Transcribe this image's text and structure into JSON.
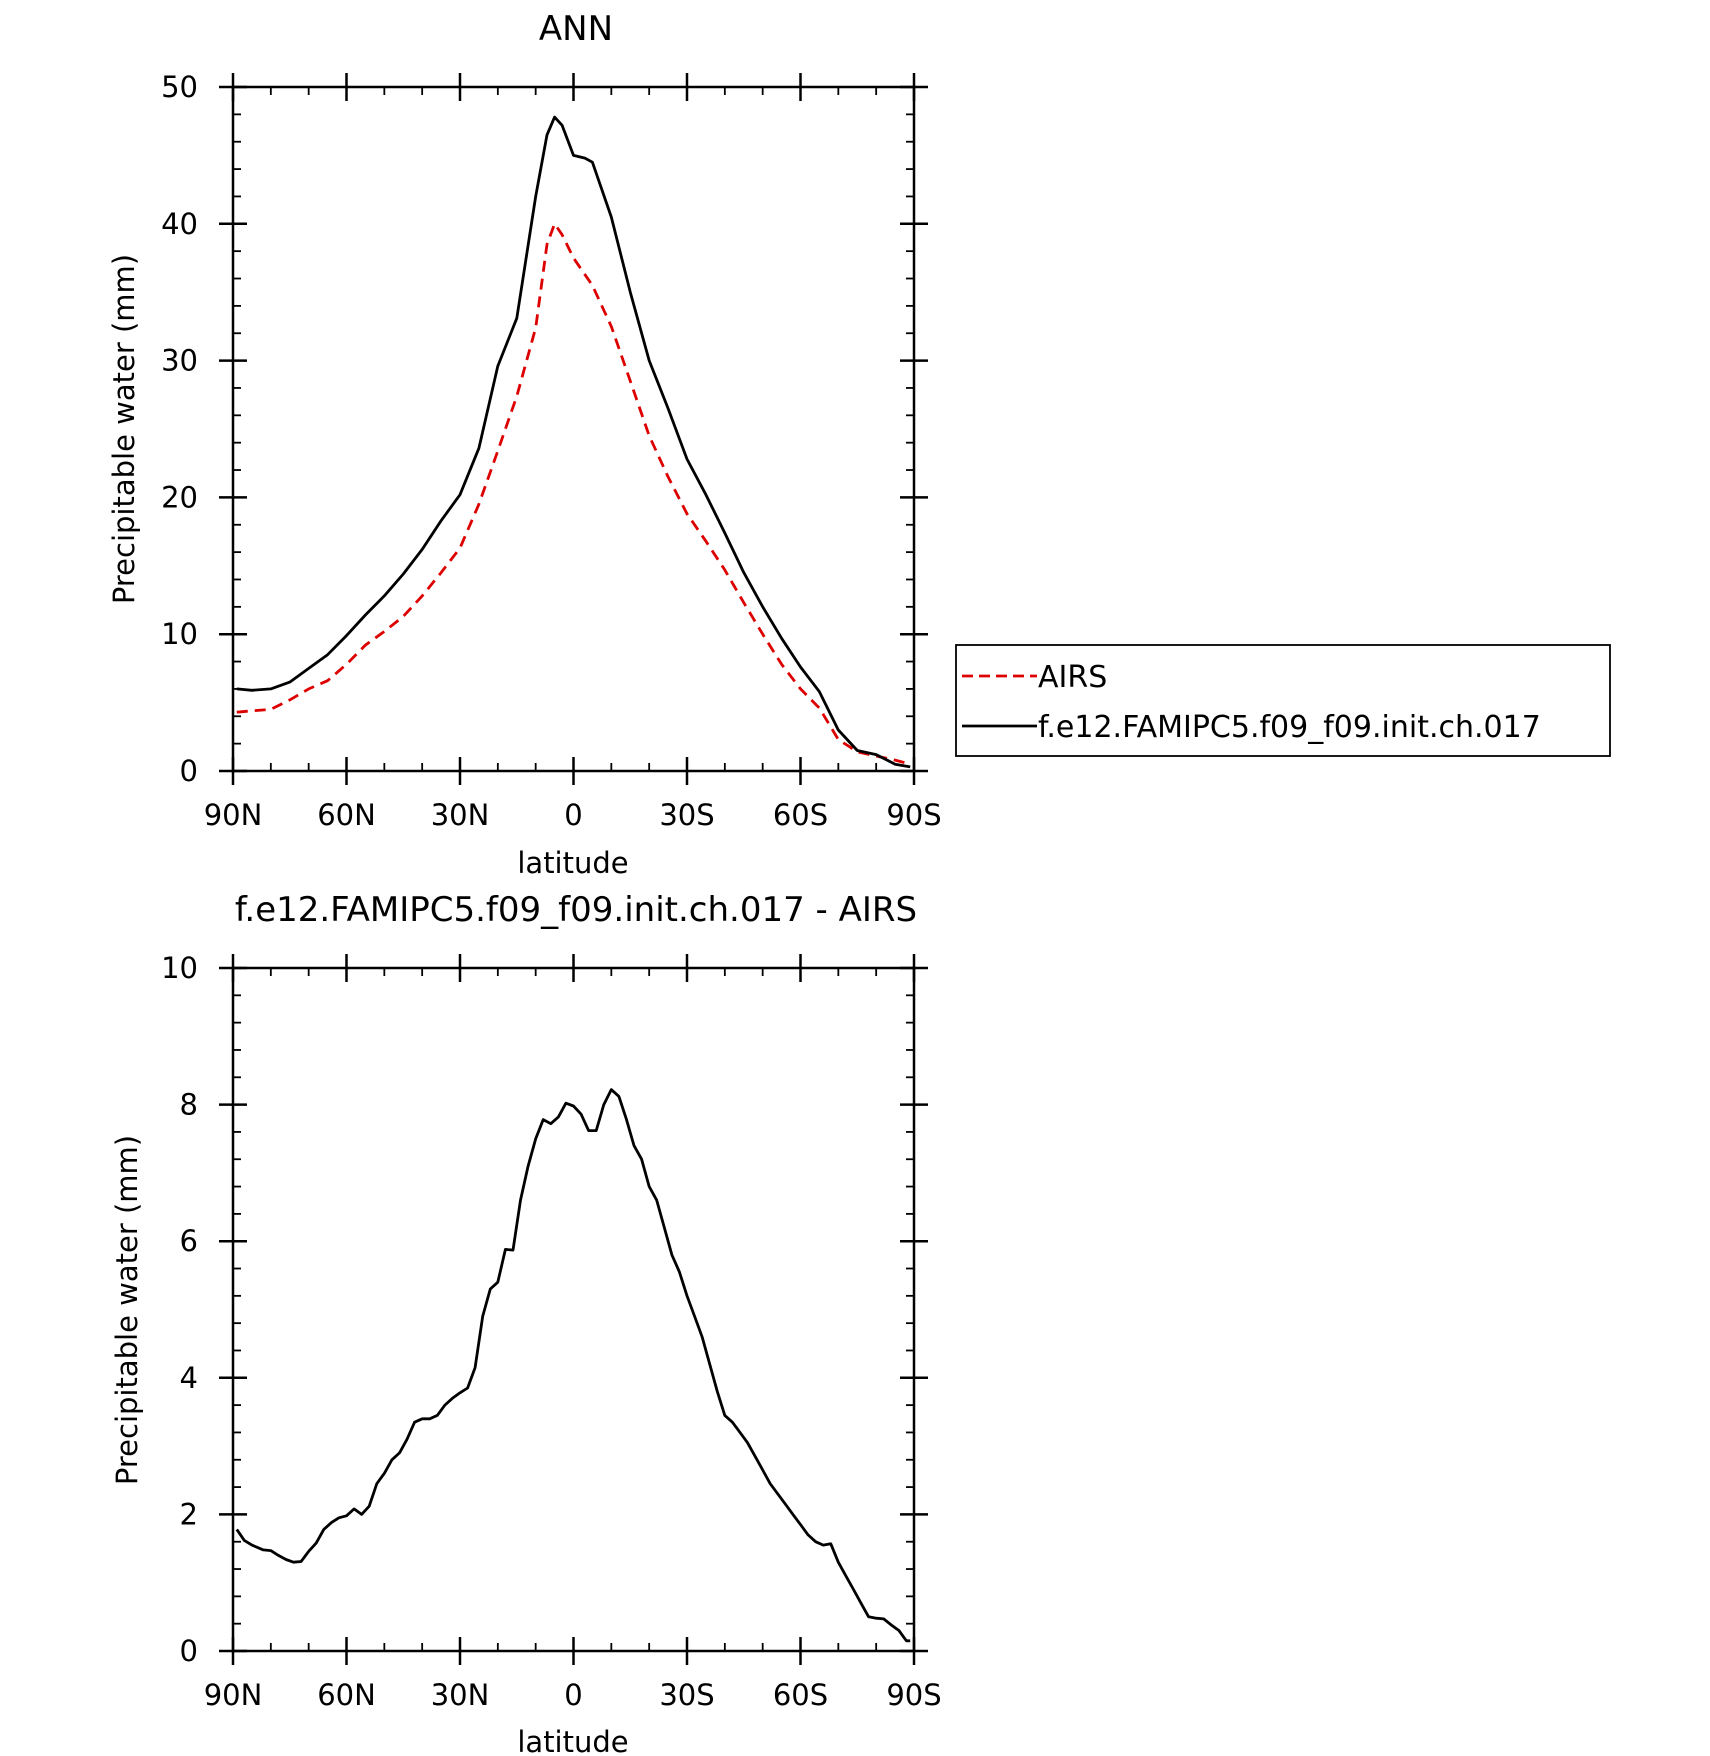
{
  "chart_data": [
    {
      "type": "line",
      "title": "ANN",
      "xlabel": "latitude",
      "ylabel": "Precipitable water (mm)",
      "xlim": [
        90,
        -90
      ],
      "ylim": [
        0,
        50
      ],
      "x_ticks": [
        90,
        60,
        30,
        0,
        -30,
        -60,
        -90
      ],
      "x_tick_labels": [
        "90N",
        "60N",
        "30N",
        "0",
        "30S",
        "60S",
        "90S"
      ],
      "y_ticks": [
        0,
        10,
        20,
        30,
        40,
        50
      ],
      "y_tick_labels": [
        "0",
        "10",
        "20",
        "30",
        "40",
        "50"
      ],
      "legend_position": "right",
      "series": [
        {
          "name": "AIRS",
          "color": "#dd0000",
          "style": "dashed",
          "x": [
            89,
            85,
            80,
            75,
            70,
            65,
            60,
            55,
            50,
            45,
            40,
            35,
            30,
            25,
            20,
            15,
            10,
            7,
            5,
            3,
            0,
            -5,
            -10,
            -15,
            -20,
            -25,
            -30,
            -35,
            -40,
            -45,
            -50,
            -55,
            -60,
            -65,
            -70,
            -75,
            -80,
            -85,
            -89
          ],
          "y": [
            4.3,
            4.4,
            4.5,
            5.2,
            6.0,
            6.6,
            7.8,
            9.2,
            10.2,
            11.3,
            12.8,
            14.5,
            16.3,
            19.5,
            23.4,
            27.4,
            32.4,
            38.5,
            40.0,
            39.2,
            37.5,
            35.5,
            32.5,
            28.5,
            24.5,
            21.5,
            18.8,
            16.8,
            14.7,
            12.3,
            10.0,
            7.8,
            6.0,
            4.6,
            2.3,
            1.4,
            1.1,
            0.8,
            0.5
          ]
        },
        {
          "name": "f.e12.FAMIPC5.f09_f09.init.ch.017",
          "color": "#000000",
          "style": "solid",
          "x": [
            89,
            85,
            80,
            75,
            70,
            65,
            60,
            55,
            50,
            45,
            40,
            35,
            30,
            25,
            20,
            15,
            10,
            7,
            5,
            3,
            0,
            -3,
            -5,
            -10,
            -15,
            -20,
            -25,
            -30,
            -35,
            -40,
            -45,
            -50,
            -55,
            -60,
            -65,
            -70,
            -75,
            -80,
            -85,
            -89
          ],
          "y": [
            6.0,
            5.9,
            6.0,
            6.5,
            7.5,
            8.5,
            9.9,
            11.4,
            12.8,
            14.4,
            16.2,
            18.3,
            20.2,
            23.6,
            29.6,
            33.1,
            42.0,
            46.5,
            47.8,
            47.2,
            45.0,
            44.8,
            44.5,
            40.5,
            35.0,
            30.0,
            26.5,
            22.8,
            20.2,
            17.4,
            14.5,
            12.0,
            9.7,
            7.6,
            5.8,
            3.0,
            1.5,
            1.2,
            0.5,
            0.3
          ]
        }
      ]
    },
    {
      "type": "line",
      "title": "f.e12.FAMIPC5.f09_f09.init.ch.017 - AIRS",
      "xlabel": "latitude",
      "ylabel": "Precipitable water (mm)",
      "xlim": [
        90,
        -90
      ],
      "ylim": [
        0,
        10
      ],
      "x_ticks": [
        90,
        60,
        30,
        0,
        -30,
        -60,
        -90
      ],
      "x_tick_labels": [
        "90N",
        "60N",
        "30N",
        "0",
        "30S",
        "60S",
        "90S"
      ],
      "y_ticks": [
        0,
        2,
        4,
        6,
        8,
        10
      ],
      "y_tick_labels": [
        "0",
        "2",
        "4",
        "6",
        "8",
        "10"
      ],
      "series": [
        {
          "color": "#000000",
          "style": "solid",
          "x": [
            89,
            87,
            85,
            82,
            80,
            78,
            76,
            74,
            72,
            70,
            68,
            66,
            64,
            62,
            60,
            58,
            56,
            54,
            52,
            50,
            48,
            46,
            44,
            42,
            40,
            38,
            36,
            34,
            32,
            30,
            28,
            26,
            24,
            22,
            20,
            18,
            16,
            14,
            12,
            10,
            8,
            6,
            4,
            2,
            0,
            -2,
            -4,
            -6,
            -8,
            -10,
            -12,
            -14,
            -16,
            -18,
            -20,
            -22,
            -24,
            -26,
            -28,
            -30,
            -32,
            -34,
            -36,
            -38,
            -40,
            -42,
            -44,
            -46,
            -48,
            -50,
            -52,
            -54,
            -56,
            -58,
            -60,
            -62,
            -64,
            -66,
            -68,
            -70,
            -72,
            -74,
            -76,
            -78,
            -80,
            -82,
            -84,
            -86,
            -88,
            -89
          ],
          "y": [
            1.78,
            1.62,
            1.55,
            1.48,
            1.47,
            1.4,
            1.34,
            1.3,
            1.31,
            1.46,
            1.58,
            1.78,
            1.88,
            1.95,
            1.98,
            2.08,
            2.0,
            2.12,
            2.45,
            2.6,
            2.8,
            2.9,
            3.1,
            3.35,
            3.4,
            3.4,
            3.45,
            3.6,
            3.7,
            3.78,
            3.85,
            4.15,
            4.9,
            5.3,
            5.4,
            5.88,
            5.87,
            6.6,
            7.1,
            7.5,
            7.78,
            7.72,
            7.82,
            8.02,
            7.98,
            7.86,
            7.62,
            7.62,
            8.0,
            8.22,
            8.12,
            7.78,
            7.4,
            7.2,
            6.8,
            6.6,
            6.2,
            5.8,
            5.55,
            5.2,
            4.9,
            4.6,
            4.2,
            3.8,
            3.45,
            3.35,
            3.2,
            3.05,
            2.85,
            2.65,
            2.45,
            2.3,
            2.15,
            2.0,
            1.85,
            1.7,
            1.6,
            1.55,
            1.57,
            1.3,
            1.1,
            0.9,
            0.7,
            0.5,
            0.48,
            0.47,
            0.38,
            0.3,
            0.15,
            0.15
          ]
        }
      ]
    }
  ]
}
